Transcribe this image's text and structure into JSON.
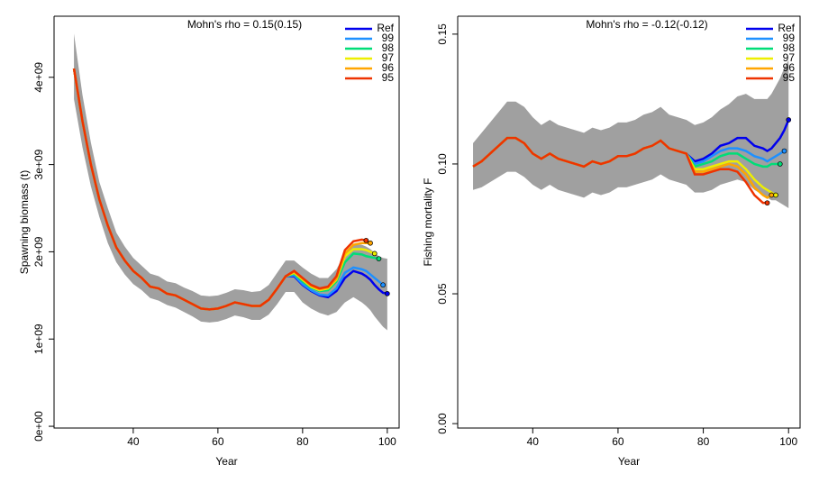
{
  "chart_data": [
    {
      "type": "line",
      "title": "Mohn's rho = 0.15(0.15)",
      "x_label": "Year",
      "y_label": "Spawning biomass (t)",
      "x": [
        26,
        28,
        30,
        32,
        34,
        36,
        38,
        40,
        42,
        44,
        46,
        48,
        50,
        52,
        54,
        56,
        58,
        60,
        62,
        64,
        66,
        68,
        70,
        72,
        74,
        76,
        78,
        80,
        82,
        84,
        86,
        88,
        90,
        92,
        94,
        95,
        96,
        97,
        98,
        99,
        100
      ],
      "band": {
        "color": "#a0a0a0",
        "upper": [
          4500000000.0,
          3800000000.0,
          3250000000.0,
          2800000000.0,
          2500000000.0,
          2220000000.0,
          2060000000.0,
          1930000000.0,
          1840000000.0,
          1750000000.0,
          1720000000.0,
          1660000000.0,
          1640000000.0,
          1590000000.0,
          1550000000.0,
          1500000000.0,
          1490000000.0,
          1500000000.0,
          1530000000.0,
          1570000000.0,
          1560000000.0,
          1540000000.0,
          1550000000.0,
          1620000000.0,
          1760000000.0,
          1900000000.0,
          1900000000.0,
          1820000000.0,
          1750000000.0,
          1700000000.0,
          1700000000.0,
          1800000000.0,
          1980000000.0,
          2080000000.0,
          2080000000.0,
          2060000000.0,
          2030000000.0,
          1990000000.0,
          1950000000.0,
          1930000000.0,
          1920000000.0
        ],
        "lower": [
          3750000000.0,
          3200000000.0,
          2750000000.0,
          2400000000.0,
          2100000000.0,
          1880000000.0,
          1740000000.0,
          1630000000.0,
          1560000000.0,
          1470000000.0,
          1440000000.0,
          1390000000.0,
          1360000000.0,
          1310000000.0,
          1260000000.0,
          1200000000.0,
          1190000000.0,
          1200000000.0,
          1230000000.0,
          1270000000.0,
          1250000000.0,
          1220000000.0,
          1220000000.0,
          1280000000.0,
          1400000000.0,
          1540000000.0,
          1540000000.0,
          1420000000.0,
          1350000000.0,
          1300000000.0,
          1270000000.0,
          1310000000.0,
          1420000000.0,
          1480000000.0,
          1420000000.0,
          1380000000.0,
          1330000000.0,
          1260000000.0,
          1200000000.0,
          1140000000.0,
          1100000000.0
        ]
      },
      "series": [
        {
          "name": "Ref",
          "color": "#0000ee",
          "values": [
            4100000000.0,
            3500000000.0,
            3000000000.0,
            2600000000.0,
            2300000000.0,
            2050000000.0,
            1900000000.0,
            1780000000.0,
            1700000000.0,
            1600000000.0,
            1580000000.0,
            1520000000.0,
            1500000000.0,
            1450000000.0,
            1400000000.0,
            1350000000.0,
            1340000000.0,
            1350000000.0,
            1380000000.0,
            1420000000.0,
            1400000000.0,
            1380000000.0,
            1380000000.0,
            1450000000.0,
            1580000000.0,
            1720000000.0,
            1720000000.0,
            1620000000.0,
            1550000000.0,
            1500000000.0,
            1480000000.0,
            1550000000.0,
            1700000000.0,
            1780000000.0,
            1750000000.0,
            1720000000.0,
            1680000000.0,
            1620000000.0,
            1570000000.0,
            1530000000.0,
            1520000000.0
          ]
        },
        {
          "name": "99",
          "color": "#1e90ff",
          "values": [
            4100000000.0,
            3500000000.0,
            3000000000.0,
            2600000000.0,
            2300000000.0,
            2050000000.0,
            1900000000.0,
            1780000000.0,
            1700000000.0,
            1600000000.0,
            1580000000.0,
            1520000000.0,
            1500000000.0,
            1450000000.0,
            1400000000.0,
            1350000000.0,
            1340000000.0,
            1350000000.0,
            1380000000.0,
            1420000000.0,
            1400000000.0,
            1380000000.0,
            1380000000.0,
            1450000000.0,
            1580000000.0,
            1720000000.0,
            1730000000.0,
            1630000000.0,
            1560000000.0,
            1510000000.0,
            1500000000.0,
            1580000000.0,
            1760000000.0,
            1820000000.0,
            1800000000.0,
            1780000000.0,
            1740000000.0,
            1700000000.0,
            1660000000.0,
            1620000000.0,
            null
          ]
        },
        {
          "name": "98",
          "color": "#00dd77",
          "values": [
            4100000000.0,
            3500000000.0,
            3000000000.0,
            2600000000.0,
            2300000000.0,
            2050000000.0,
            1900000000.0,
            1780000000.0,
            1700000000.0,
            1600000000.0,
            1580000000.0,
            1520000000.0,
            1500000000.0,
            1450000000.0,
            1400000000.0,
            1350000000.0,
            1340000000.0,
            1350000000.0,
            1380000000.0,
            1420000000.0,
            1400000000.0,
            1380000000.0,
            1380000000.0,
            1450000000.0,
            1580000000.0,
            1720000000.0,
            1750000000.0,
            1660000000.0,
            1590000000.0,
            1550000000.0,
            1560000000.0,
            1660000000.0,
            1880000000.0,
            1980000000.0,
            1970000000.0,
            1950000000.0,
            1940000000.0,
            1930000000.0,
            1920000000.0,
            null,
            null
          ]
        },
        {
          "name": "97",
          "color": "#eeee00",
          "values": [
            4100000000.0,
            3500000000.0,
            3000000000.0,
            2600000000.0,
            2300000000.0,
            2050000000.0,
            1900000000.0,
            1780000000.0,
            1700000000.0,
            1600000000.0,
            1580000000.0,
            1520000000.0,
            1500000000.0,
            1450000000.0,
            1400000000.0,
            1350000000.0,
            1340000000.0,
            1350000000.0,
            1380000000.0,
            1420000000.0,
            1400000000.0,
            1380000000.0,
            1380000000.0,
            1450000000.0,
            1580000000.0,
            1720000000.0,
            1760000000.0,
            1680000000.0,
            1600000000.0,
            1560000000.0,
            1580000000.0,
            1680000000.0,
            1950000000.0,
            2030000000.0,
            2030000000.0,
            2020000000.0,
            2000000000.0,
            1980000000.0,
            null,
            null,
            null
          ]
        },
        {
          "name": "96",
          "color": "#ffa500",
          "values": [
            4100000000.0,
            3500000000.0,
            3000000000.0,
            2600000000.0,
            2300000000.0,
            2050000000.0,
            1900000000.0,
            1780000000.0,
            1700000000.0,
            1600000000.0,
            1580000000.0,
            1520000000.0,
            1500000000.0,
            1450000000.0,
            1400000000.0,
            1350000000.0,
            1340000000.0,
            1350000000.0,
            1380000000.0,
            1420000000.0,
            1400000000.0,
            1380000000.0,
            1380000000.0,
            1450000000.0,
            1580000000.0,
            1720000000.0,
            1770000000.0,
            1690000000.0,
            1610000000.0,
            1570000000.0,
            1590000000.0,
            1690000000.0,
            1980000000.0,
            2080000000.0,
            2100000000.0,
            2100000000.0,
            2100000000.0,
            null,
            null,
            null,
            null
          ]
        },
        {
          "name": "95",
          "color": "#ee3300",
          "values": [
            4100000000.0,
            3500000000.0,
            3000000000.0,
            2600000000.0,
            2300000000.0,
            2050000000.0,
            1900000000.0,
            1780000000.0,
            1700000000.0,
            1600000000.0,
            1580000000.0,
            1520000000.0,
            1500000000.0,
            1450000000.0,
            1400000000.0,
            1350000000.0,
            1340000000.0,
            1350000000.0,
            1380000000.0,
            1420000000.0,
            1400000000.0,
            1380000000.0,
            1380000000.0,
            1450000000.0,
            1580000000.0,
            1720000000.0,
            1780000000.0,
            1700000000.0,
            1620000000.0,
            1580000000.0,
            1600000000.0,
            1720000000.0,
            2020000000.0,
            2120000000.0,
            2140000000.0,
            2130000000.0,
            null,
            null,
            null,
            null,
            null
          ]
        }
      ],
      "xlim": [
        21.3,
        102.8
      ],
      "xticks": [
        40,
        60,
        80,
        100
      ],
      "ylim": [
        -20000000.0,
        4700000000.0
      ],
      "yticks": [
        {
          "value": 0,
          "label": "0e+00"
        },
        {
          "value": 1000000000.0,
          "label": "1e+09"
        },
        {
          "value": 2000000000.0,
          "label": "2e+09"
        },
        {
          "value": 3000000000.0,
          "label": "3e+09"
        },
        {
          "value": 4000000000.0,
          "label": "4e+09"
        }
      ],
      "legend": "topright"
    },
    {
      "type": "line",
      "title": "Mohn's rho = -0.12(-0.12)",
      "x_label": "Year",
      "y_label": "Fishing mortality F",
      "x": [
        26,
        28,
        30,
        32,
        34,
        36,
        38,
        40,
        42,
        44,
        46,
        48,
        50,
        52,
        54,
        56,
        58,
        60,
        62,
        64,
        66,
        68,
        70,
        72,
        74,
        76,
        78,
        80,
        82,
        84,
        86,
        88,
        90,
        92,
        94,
        95,
        96,
        97,
        98,
        99,
        100
      ],
      "band": {
        "color": "#a0a0a0",
        "upper": [
          0.108,
          0.112,
          0.116,
          0.12,
          0.124,
          0.124,
          0.122,
          0.118,
          0.115,
          0.117,
          0.115,
          0.114,
          0.113,
          0.112,
          0.114,
          0.113,
          0.114,
          0.116,
          0.116,
          0.117,
          0.119,
          0.12,
          0.122,
          0.119,
          0.118,
          0.117,
          0.115,
          0.116,
          0.118,
          0.121,
          0.123,
          0.126,
          0.127,
          0.125,
          0.125,
          0.125,
          0.127,
          0.13,
          0.133,
          0.137,
          0.14
        ],
        "lower": [
          0.09,
          0.091,
          0.093,
          0.095,
          0.097,
          0.097,
          0.095,
          0.092,
          0.09,
          0.092,
          0.09,
          0.089,
          0.088,
          0.087,
          0.089,
          0.088,
          0.089,
          0.091,
          0.091,
          0.092,
          0.093,
          0.094,
          0.096,
          0.094,
          0.093,
          0.092,
          0.089,
          0.089,
          0.09,
          0.092,
          0.093,
          0.094,
          0.093,
          0.09,
          0.088,
          0.087,
          0.086,
          0.086,
          0.085,
          0.084,
          0.083
        ]
      },
      "series": [
        {
          "name": "Ref",
          "color": "#0000ee",
          "values": [
            0.099,
            0.101,
            0.104,
            0.107,
            0.11,
            0.11,
            0.108,
            0.104,
            0.102,
            0.104,
            0.102,
            0.101,
            0.1,
            0.099,
            0.101,
            0.1,
            0.101,
            0.103,
            0.103,
            0.104,
            0.106,
            0.107,
            0.109,
            0.106,
            0.105,
            0.104,
            0.101,
            0.102,
            0.104,
            0.107,
            0.108,
            0.11,
            0.11,
            0.107,
            0.106,
            0.105,
            0.106,
            0.108,
            0.11,
            0.113,
            0.117
          ]
        },
        {
          "name": "99",
          "color": "#1e90ff",
          "values": [
            0.099,
            0.101,
            0.104,
            0.107,
            0.11,
            0.11,
            0.108,
            0.104,
            0.102,
            0.104,
            0.102,
            0.101,
            0.1,
            0.099,
            0.101,
            0.1,
            0.101,
            0.103,
            0.103,
            0.104,
            0.106,
            0.107,
            0.109,
            0.106,
            0.105,
            0.104,
            0.1,
            0.101,
            0.103,
            0.105,
            0.106,
            0.106,
            0.105,
            0.103,
            0.102,
            0.101,
            0.102,
            0.103,
            0.104,
            0.105,
            null
          ]
        },
        {
          "name": "98",
          "color": "#00dd77",
          "values": [
            0.099,
            0.101,
            0.104,
            0.107,
            0.11,
            0.11,
            0.108,
            0.104,
            0.102,
            0.104,
            0.102,
            0.101,
            0.1,
            0.099,
            0.101,
            0.1,
            0.101,
            0.103,
            0.103,
            0.104,
            0.106,
            0.107,
            0.109,
            0.106,
            0.105,
            0.104,
            0.099,
            0.1,
            0.101,
            0.103,
            0.104,
            0.104,
            0.102,
            0.1,
            0.099,
            0.099,
            0.1,
            0.1,
            0.1,
            null,
            null
          ]
        },
        {
          "name": "97",
          "color": "#eeee00",
          "values": [
            0.099,
            0.101,
            0.104,
            0.107,
            0.11,
            0.11,
            0.108,
            0.104,
            0.102,
            0.104,
            0.102,
            0.101,
            0.1,
            0.099,
            0.101,
            0.1,
            0.101,
            0.103,
            0.103,
            0.104,
            0.106,
            0.107,
            0.109,
            0.106,
            0.105,
            0.104,
            0.098,
            0.098,
            0.099,
            0.1,
            0.101,
            0.101,
            0.098,
            0.094,
            0.091,
            0.09,
            0.089,
            0.088,
            null,
            null,
            null
          ]
        },
        {
          "name": "96",
          "color": "#ffa500",
          "values": [
            0.099,
            0.101,
            0.104,
            0.107,
            0.11,
            0.11,
            0.108,
            0.104,
            0.102,
            0.104,
            0.102,
            0.101,
            0.1,
            0.099,
            0.101,
            0.1,
            0.101,
            0.103,
            0.103,
            0.104,
            0.106,
            0.107,
            0.109,
            0.106,
            0.105,
            0.104,
            0.097,
            0.097,
            0.098,
            0.099,
            0.1,
            0.099,
            0.096,
            0.091,
            0.088,
            0.087,
            0.088,
            null,
            null,
            null,
            null
          ]
        },
        {
          "name": "95",
          "color": "#ee3300",
          "values": [
            0.099,
            0.101,
            0.104,
            0.107,
            0.11,
            0.11,
            0.108,
            0.104,
            0.102,
            0.104,
            0.102,
            0.101,
            0.1,
            0.099,
            0.101,
            0.1,
            0.101,
            0.103,
            0.103,
            0.104,
            0.106,
            0.107,
            0.109,
            0.106,
            0.105,
            0.104,
            0.096,
            0.096,
            0.097,
            0.098,
            0.098,
            0.097,
            0.093,
            0.088,
            0.085,
            0.085,
            null,
            null,
            null,
            null,
            null
          ]
        }
      ],
      "xlim": [
        22.4,
        102.7
      ],
      "xticks": [
        40,
        60,
        80,
        100
      ],
      "ylim": [
        -0.0017,
        0.1569
      ],
      "yticks": [
        {
          "value": 0,
          "label": "0.00"
        },
        {
          "value": 0.05,
          "label": "0.05"
        },
        {
          "value": 0.1,
          "label": "0.10"
        },
        {
          "value": 0.15,
          "label": "0.15"
        }
      ],
      "legend": "topright"
    }
  ]
}
